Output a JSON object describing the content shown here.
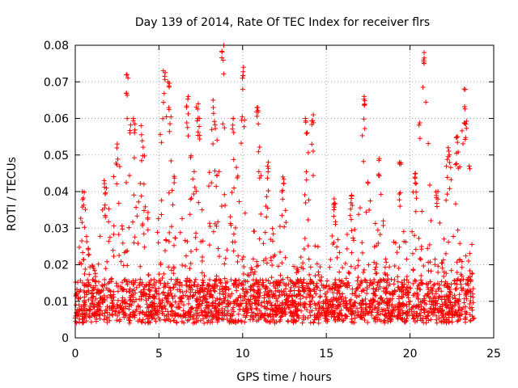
{
  "chart_data": {
    "type": "scatter",
    "title": "Day 139 of 2014, Rate Of TEC Index for receiver flrs",
    "xlabel": "GPS time / hours",
    "ylabel": "ROTI / TECUs",
    "xlim": [
      0,
      25
    ],
    "ylim": [
      0,
      0.08
    ],
    "x_ticks": [
      0,
      5,
      10,
      15,
      20,
      25
    ],
    "x_tick_labels": [
      "0",
      "5",
      "10",
      "15",
      "20",
      "25"
    ],
    "y_ticks": [
      0,
      0.01,
      0.02,
      0.03,
      0.04,
      0.05,
      0.06,
      0.07,
      0.08
    ],
    "y_tick_labels": [
      "0",
      "0.01",
      "0.02",
      "0.03",
      "0.04",
      "0.05",
      "0.06",
      "0.07",
      "0.08"
    ],
    "grid": true,
    "marker": "+",
    "color": "#ff0000",
    "series": [
      {
        "name": "ROTI",
        "x_range": [
          0,
          23.85
        ],
        "baseline_range": [
          0.004,
          0.016
        ],
        "peaks": [
          {
            "x": 0.5,
            "y": 0.04
          },
          {
            "x": 1.8,
            "y": 0.043
          },
          {
            "x": 2.5,
            "y": 0.053
          },
          {
            "x": 3.1,
            "y": 0.072
          },
          {
            "x": 3.5,
            "y": 0.06
          },
          {
            "x": 4.0,
            "y": 0.058
          },
          {
            "x": 5.3,
            "y": 0.073
          },
          {
            "x": 5.6,
            "y": 0.07
          },
          {
            "x": 6.7,
            "y": 0.066
          },
          {
            "x": 7.3,
            "y": 0.064
          },
          {
            "x": 8.3,
            "y": 0.065
          },
          {
            "x": 8.8,
            "y": 0.08
          },
          {
            "x": 9.4,
            "y": 0.06
          },
          {
            "x": 10.0,
            "y": 0.074
          },
          {
            "x": 10.9,
            "y": 0.063
          },
          {
            "x": 11.5,
            "y": 0.048
          },
          {
            "x": 12.4,
            "y": 0.044
          },
          {
            "x": 13.8,
            "y": 0.06
          },
          {
            "x": 14.2,
            "y": 0.061
          },
          {
            "x": 15.5,
            "y": 0.038
          },
          {
            "x": 16.5,
            "y": 0.039
          },
          {
            "x": 17.3,
            "y": 0.066
          },
          {
            "x": 18.2,
            "y": 0.049
          },
          {
            "x": 19.4,
            "y": 0.048
          },
          {
            "x": 20.3,
            "y": 0.045
          },
          {
            "x": 20.8,
            "y": 0.078
          },
          {
            "x": 21.6,
            "y": 0.04
          },
          {
            "x": 22.3,
            "y": 0.052
          },
          {
            "x": 22.8,
            "y": 0.055
          },
          {
            "x": 23.3,
            "y": 0.068
          }
        ]
      }
    ]
  }
}
